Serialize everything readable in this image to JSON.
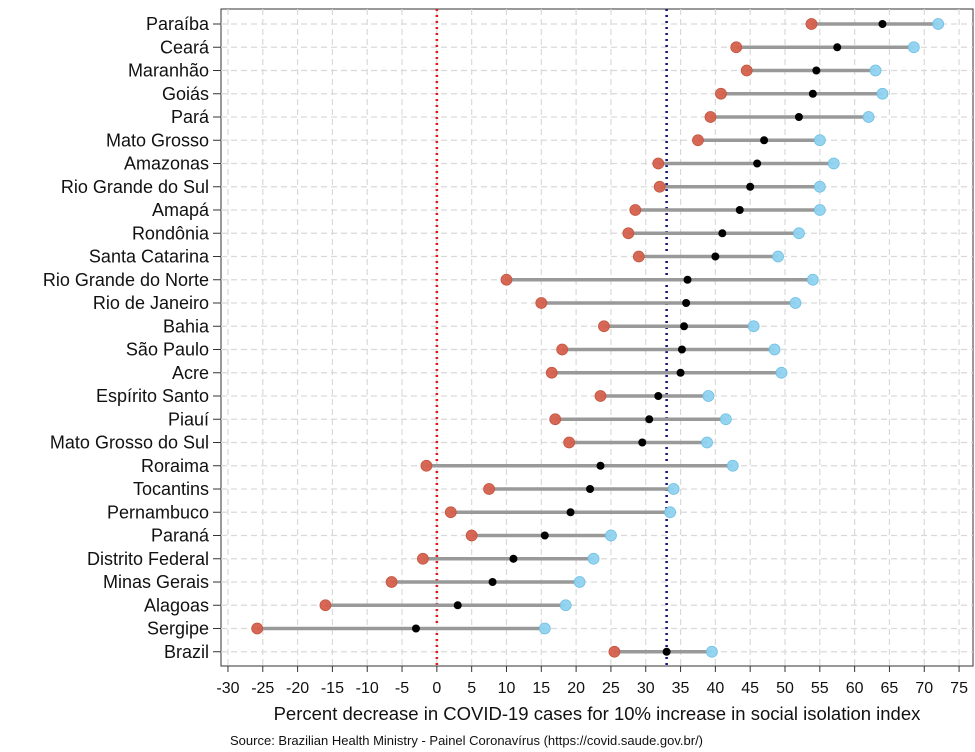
{
  "chart_data": {
    "type": "dumbbell",
    "xlabel": "Percent decrease in COVID-19 cases for 10% increase in social isolation index",
    "xlim": [
      -31,
      77
    ],
    "xticks": [
      -30,
      -25,
      -20,
      -15,
      -10,
      -5,
      0,
      5,
      10,
      15,
      20,
      25,
      30,
      35,
      40,
      45,
      50,
      55,
      60,
      65,
      70,
      75
    ],
    "grid": true,
    "legend": "none",
    "reference_lines": [
      {
        "x": 0,
        "color": "#e31a1c",
        "style": "dotted"
      },
      {
        "x": 33,
        "color": "#1a1a7a",
        "style": "dotted"
      }
    ],
    "colors": {
      "lower": "#d6604d",
      "estimate": "#000000",
      "upper": "#8fd3f0",
      "range_line": "#999999"
    },
    "categories": [
      "Paraíba",
      "Ceará",
      "Maranhão",
      "Goiás",
      "Pará",
      "Mato Grosso",
      "Amazonas",
      "Rio Grande do Sul",
      "Amapá",
      "Rondônia",
      "Santa Catarina",
      "Rio Grande do Norte",
      "Rio de Janeiro",
      "Bahia",
      "São Paulo",
      "Acre",
      "Espírito Santo",
      "Piauí",
      "Mato Grosso do Sul",
      "Roraima",
      "Tocantins",
      "Pernambuco",
      "Paraná",
      "Distrito Federal",
      "Minas Gerais",
      "Alagoas",
      "Sergipe",
      "Brazil"
    ],
    "lower": [
      53.8,
      43.0,
      44.5,
      40.8,
      39.3,
      37.5,
      31.8,
      32.0,
      28.5,
      27.5,
      29.0,
      10.0,
      15.0,
      24.0,
      18.0,
      16.5,
      23.5,
      17.0,
      19.0,
      -1.5,
      7.5,
      2.0,
      5.0,
      -2.0,
      -6.5,
      -16.0,
      -25.8,
      25.5
    ],
    "estimate": [
      64.0,
      57.5,
      54.5,
      54.0,
      52.0,
      47.0,
      46.0,
      45.0,
      43.5,
      41.0,
      40.0,
      36.0,
      35.8,
      35.5,
      35.2,
      35.0,
      31.8,
      30.5,
      29.5,
      23.5,
      22.0,
      19.2,
      15.5,
      11.0,
      8.0,
      3.0,
      -3.0,
      33.0
    ],
    "upper": [
      72.0,
      68.5,
      63.0,
      64.0,
      62.0,
      55.0,
      57.0,
      55.0,
      55.0,
      52.0,
      49.0,
      54.0,
      51.5,
      45.5,
      48.5,
      49.5,
      39.0,
      41.5,
      38.8,
      42.5,
      34.0,
      33.5,
      25.0,
      22.5,
      20.5,
      18.5,
      15.5,
      39.5
    ]
  },
  "source_note": "Source: Brazilian Health Ministry - Painel Coronavírus (https://covid.saude.gov.br/)"
}
